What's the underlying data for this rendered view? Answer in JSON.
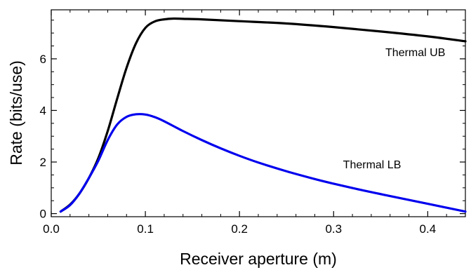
{
  "chart_data": {
    "type": "line",
    "title": "",
    "xlabel": "Receiver aperture (m)",
    "ylabel": "Rate (bits/use)",
    "xlim": [
      0,
      0.44
    ],
    "ylim": [
      -0.12,
      7.9
    ],
    "x_ticks": [
      0.0,
      0.1,
      0.2,
      0.3,
      0.4
    ],
    "x_tick_labels": [
      "0.0",
      "0.1",
      "0.2",
      "0.3",
      "0.4"
    ],
    "y_ticks": [
      0,
      2,
      4,
      6
    ],
    "y_tick_labels": [
      "0",
      "2",
      "4",
      "6"
    ],
    "grid": false,
    "series": [
      {
        "name": "Thermal UB",
        "color": "#000000",
        "x": [
          0.01,
          0.02,
          0.03,
          0.04,
          0.05,
          0.06,
          0.07,
          0.08,
          0.09,
          0.1,
          0.11,
          0.12,
          0.13,
          0.14,
          0.16,
          0.2,
          0.25,
          0.3,
          0.35,
          0.4,
          0.44
        ],
        "values": [
          0.08,
          0.35,
          0.78,
          1.38,
          2.15,
          3.2,
          4.45,
          5.65,
          6.6,
          7.2,
          7.45,
          7.53,
          7.56,
          7.55,
          7.53,
          7.46,
          7.37,
          7.23,
          7.06,
          6.87,
          6.68
        ]
      },
      {
        "name": "Thermal LB",
        "color": "#0000ee",
        "x": [
          0.01,
          0.02,
          0.03,
          0.04,
          0.05,
          0.06,
          0.07,
          0.08,
          0.09,
          0.1,
          0.11,
          0.12,
          0.14,
          0.16,
          0.18,
          0.2,
          0.22,
          0.25,
          0.28,
          0.3,
          0.33,
          0.36,
          0.4,
          0.44
        ],
        "values": [
          0.08,
          0.33,
          0.78,
          1.38,
          2.05,
          2.85,
          3.45,
          3.75,
          3.85,
          3.84,
          3.74,
          3.58,
          3.2,
          2.85,
          2.53,
          2.24,
          1.98,
          1.64,
          1.34,
          1.16,
          0.91,
          0.68,
          0.38,
          0.08
        ]
      }
    ],
    "annotations": [
      {
        "text": "Thermal UB",
        "x": 0.355,
        "y": 6.1
      },
      {
        "text": "Thermal LB",
        "x": 0.31,
        "y": 1.75
      }
    ]
  }
}
